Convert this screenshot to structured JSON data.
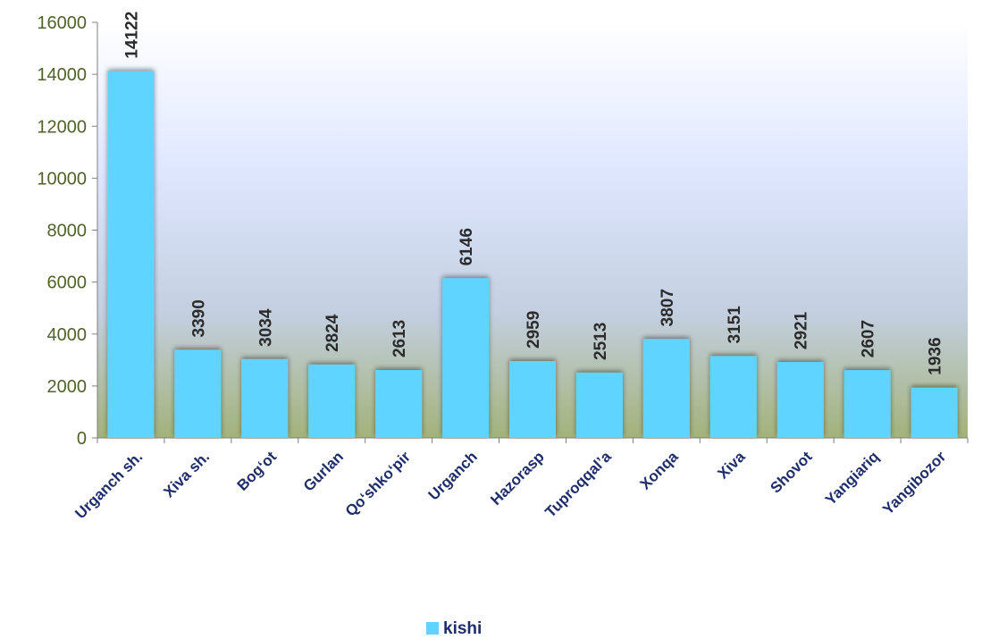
{
  "chart_data": {
    "type": "bar",
    "title": "",
    "xlabel": "",
    "ylabel": "",
    "categories": [
      "Urganch sh.",
      "Xiva sh.",
      "Bog‘ot",
      "Gurlan",
      "Qo‘shko‘pir",
      "Urganch",
      "Hazorasp",
      "Tuproqqal’a",
      "Xonqa",
      "Xiva",
      "Shovot",
      "Yangiariq",
      "Yangibozor"
    ],
    "series": [
      {
        "name": "kishi",
        "values": [
          14122,
          3390,
          3034,
          2824,
          2613,
          6146,
          2959,
          2513,
          3807,
          3151,
          2921,
          2607,
          1936
        ]
      }
    ],
    "ylim": [
      0,
      16000
    ],
    "yticks": [
      0,
      2000,
      4000,
      6000,
      8000,
      10000,
      12000,
      14000,
      16000
    ],
    "grid": false,
    "legend_position": "bottom",
    "colors": {
      "bar": "#5fd4ff",
      "plot_bg_top": "#c8d7ff",
      "plot_bg_bottom": "#a3b27a",
      "tick_text": "#4f6228",
      "category_text": "#1f2d6b"
    }
  }
}
